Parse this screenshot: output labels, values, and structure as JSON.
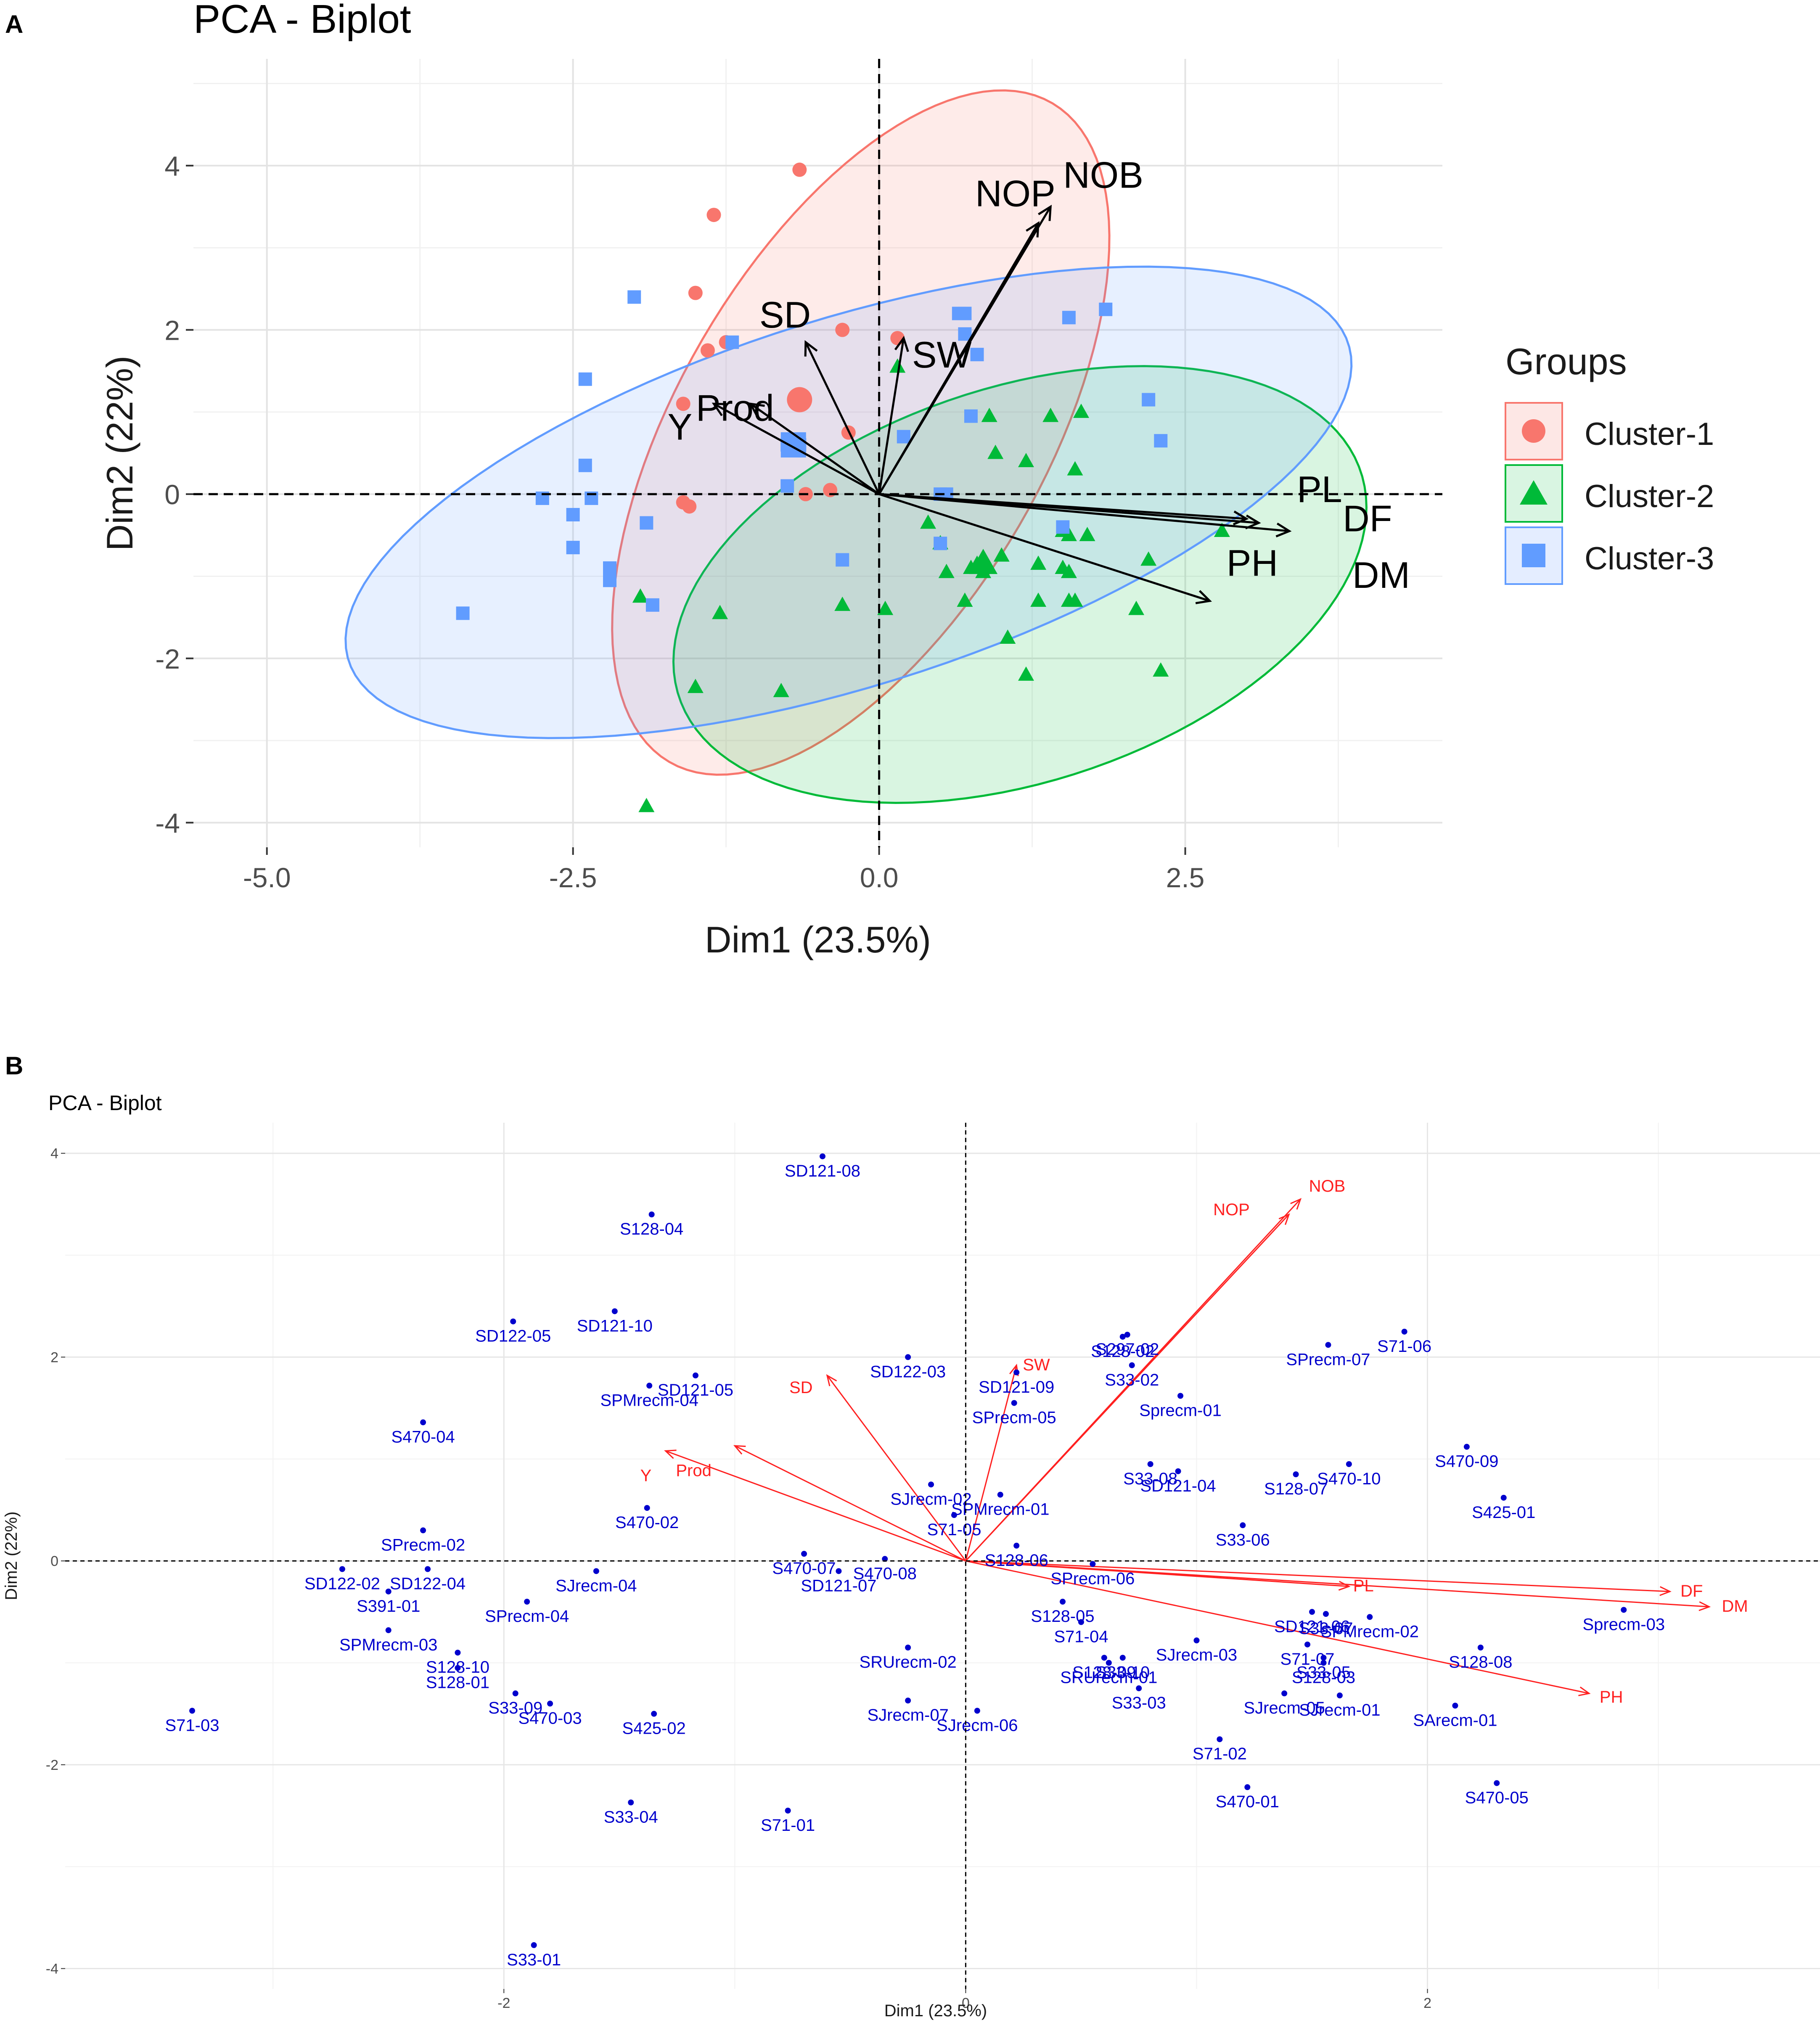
{
  "panel_labels": [
    "A",
    "B"
  ],
  "chart_data": [
    {
      "panel": "A",
      "type": "scatter",
      "title": "PCA - Biplot",
      "xlabel": "Dim1 (23.5%)",
      "ylabel": "Dim2 (22%)",
      "xlim": [
        -5.6,
        4.6
      ],
      "ylim": [
        -4.3,
        5.3
      ],
      "xticks": [
        -5.0,
        -2.5,
        0.0,
        2.5
      ],
      "xtick_labels": [
        "-5.0",
        "-2.5",
        "0.0",
        "2.5"
      ],
      "yticks": [
        -4,
        -2,
        0,
        2,
        4
      ],
      "ytick_labels": [
        "-4",
        "-2",
        "0",
        "2",
        "4"
      ],
      "grid": true,
      "legend": {
        "title": "Groups",
        "position": "right",
        "entries": [
          {
            "label": "Cluster-1",
            "color": "#F8766D",
            "shape": "circle"
          },
          {
            "label": "Cluster-2",
            "color": "#00BA38",
            "shape": "triangle"
          },
          {
            "label": "Cluster-3",
            "color": "#619CFF",
            "shape": "square"
          }
        ]
      },
      "series": [
        {
          "name": "Cluster-1",
          "color": "#F8766D",
          "shape": "circle",
          "points": [
            [
              -0.65,
              3.95
            ],
            [
              -1.35,
              3.4
            ],
            [
              -1.5,
              2.45
            ],
            [
              -1.25,
              1.85
            ],
            [
              -1.4,
              1.75
            ],
            [
              -0.3,
              2.0
            ],
            [
              0.15,
              1.9
            ],
            [
              -1.6,
              1.1
            ],
            [
              -0.65,
              1.15
            ],
            [
              -0.25,
              0.75
            ],
            [
              -0.6,
              0.0
            ],
            [
              -0.4,
              0.05
            ],
            [
              -1.55,
              -0.15
            ],
            [
              -1.6,
              -0.1
            ]
          ]
        },
        {
          "name": "Cluster-2",
          "color": "#00BA38",
          "shape": "triangle",
          "points": [
            [
              0.15,
              1.55
            ],
            [
              0.9,
              0.95
            ],
            [
              1.4,
              0.95
            ],
            [
              1.65,
              1.0
            ],
            [
              1.2,
              0.4
            ],
            [
              1.6,
              0.3
            ],
            [
              0.95,
              0.5
            ],
            [
              0.4,
              -0.35
            ],
            [
              0.5,
              -0.6
            ],
            [
              0.55,
              -0.95
            ],
            [
              0.75,
              -0.9
            ],
            [
              0.8,
              -0.85
            ],
            [
              0.85,
              -0.95
            ],
            [
              0.9,
              -0.9
            ],
            [
              1.0,
              -0.75
            ],
            [
              1.3,
              -0.85
            ],
            [
              1.5,
              -0.45
            ],
            [
              1.55,
              -0.5
            ],
            [
              1.7,
              -0.5
            ],
            [
              1.5,
              -0.9
            ],
            [
              1.55,
              -0.95
            ],
            [
              1.55,
              -1.3
            ],
            [
              2.2,
              -0.8
            ],
            [
              2.8,
              -0.45
            ],
            [
              0.7,
              -1.3
            ],
            [
              1.3,
              -1.3
            ],
            [
              1.6,
              -1.3
            ],
            [
              2.1,
              -1.4
            ],
            [
              1.05,
              -1.75
            ],
            [
              1.2,
              -2.2
            ],
            [
              2.3,
              -2.15
            ],
            [
              -0.3,
              -1.35
            ],
            [
              0.05,
              -1.4
            ],
            [
              -1.95,
              -1.25
            ],
            [
              -1.3,
              -1.45
            ],
            [
              -0.8,
              -2.4
            ],
            [
              -1.5,
              -2.35
            ],
            [
              -1.9,
              -3.8
            ]
          ]
        },
        {
          "name": "Cluster-3",
          "color": "#619CFF",
          "shape": "square",
          "points": [
            [
              -2.0,
              2.4
            ],
            [
              -1.2,
              1.85
            ],
            [
              -2.4,
              1.4
            ],
            [
              -2.4,
              0.35
            ],
            [
              -2.35,
              -0.05
            ],
            [
              -2.75,
              -0.05
            ],
            [
              -2.5,
              -0.25
            ],
            [
              -2.5,
              -0.65
            ],
            [
              -2.2,
              -0.9
            ],
            [
              -2.2,
              -1.05
            ],
            [
              -1.9,
              -0.35
            ],
            [
              -1.85,
              -1.35
            ],
            [
              -3.4,
              -1.45
            ],
            [
              -0.7,
              0.55
            ],
            [
              -0.75,
              0.6
            ],
            [
              -0.65,
              0.6
            ],
            [
              -0.75,
              0.1
            ],
            [
              -0.3,
              -0.8
            ],
            [
              0.2,
              0.7
            ],
            [
              0.5,
              -0.6
            ],
            [
              0.55,
              0.0
            ],
            [
              0.65,
              2.2
            ],
            [
              0.7,
              2.2
            ],
            [
              0.7,
              1.95
            ],
            [
              0.8,
              1.7
            ],
            [
              0.75,
              0.95
            ],
            [
              1.55,
              2.15
            ],
            [
              1.85,
              2.25
            ],
            [
              2.2,
              1.15
            ],
            [
              2.3,
              0.65
            ],
            [
              1.5,
              -0.4
            ],
            [
              0.5,
              0.0
            ]
          ]
        }
      ],
      "variables": [
        {
          "name": "NOB",
          "x": 1.4,
          "y": 3.5
        },
        {
          "name": "NOP",
          "x": 1.3,
          "y": 3.3
        },
        {
          "name": "SD",
          "x": -0.6,
          "y": 1.85
        },
        {
          "name": "SW",
          "x": 0.2,
          "y": 1.9
        },
        {
          "name": "Prod",
          "x": -1.05,
          "y": 1.1
        },
        {
          "name": "Y",
          "x": -1.35,
          "y": 1.1
        },
        {
          "name": "PL",
          "x": 3.0,
          "y": -0.3
        },
        {
          "name": "DF",
          "x": 3.1,
          "y": -0.35
        },
        {
          "name": "DM",
          "x": 3.35,
          "y": -0.45
        },
        {
          "name": "PH",
          "x": 2.7,
          "y": -1.3
        }
      ],
      "ellipses": [
        {
          "group": "Cluster-1",
          "cx": -0.15,
          "cy": 0.75,
          "rx": 4.35,
          "ry": 1.6,
          "angle_deg": 72,
          "color": "#F8766D"
        },
        {
          "group": "Cluster-2",
          "cx": 1.15,
          "cy": -1.1,
          "rx": 3.2,
          "ry": 2.2,
          "angle_deg": 40,
          "color": "#00BA38"
        },
        {
          "group": "Cluster-3",
          "cx": -0.25,
          "cy": -0.1,
          "rx": 4.55,
          "ry": 2.1,
          "angle_deg": 29,
          "color": "#619CFF"
        }
      ]
    },
    {
      "panel": "B",
      "type": "scatter",
      "title": "PCA - Biplot",
      "xlabel": "Dim1 (23.5%)",
      "ylabel": "Dim2 (22%)",
      "xlim": [
        -3.9,
        3.7
      ],
      "ylim": [
        -4.2,
        4.3
      ],
      "xticks": [
        -2,
        0,
        2
      ],
      "xtick_labels": [
        "-2",
        "0",
        "2"
      ],
      "yticks": [
        -4,
        -2,
        0,
        2,
        4
      ],
      "ytick_labels": [
        "-4",
        "-2",
        "0",
        "2",
        "4"
      ],
      "grid": true,
      "point_color": "#0000CD",
      "variable_color": "#FF2020",
      "points": [
        {
          "label": "SD121-08",
          "x": -0.62,
          "y": 3.97
        },
        {
          "label": "S128-04",
          "x": -1.36,
          "y": 3.4
        },
        {
          "label": "SD121-10",
          "x": -1.52,
          "y": 2.45
        },
        {
          "label": "SD122-05",
          "x": -1.96,
          "y": 2.35
        },
        {
          "label": "SD122-03",
          "x": -0.25,
          "y": 2.0
        },
        {
          "label": "SD121-05",
          "x": -1.17,
          "y": 1.82
        },
        {
          "label": "SPMrecm-04",
          "x": -1.37,
          "y": 1.72
        },
        {
          "label": "S470-04",
          "x": -2.35,
          "y": 1.36
        },
        {
          "label": "SD121-09",
          "x": 0.22,
          "y": 1.85
        },
        {
          "label": "SPrecm-05",
          "x": 0.21,
          "y": 1.55
        },
        {
          "label": "S128-02",
          "x": 0.68,
          "y": 2.2
        },
        {
          "label": "S297-02",
          "x": 0.7,
          "y": 2.22
        },
        {
          "label": "S33-02",
          "x": 0.72,
          "y": 1.92
        },
        {
          "label": "Sprecm-01",
          "x": 0.93,
          "y": 1.62
        },
        {
          "label": "SPrecm-07",
          "x": 1.57,
          "y": 2.12
        },
        {
          "label": "S71-06",
          "x": 1.9,
          "y": 2.25
        },
        {
          "label": "S33-08",
          "x": 0.8,
          "y": 0.95
        },
        {
          "label": "SD121-04",
          "x": 0.92,
          "y": 0.88
        },
        {
          "label": "S470-10",
          "x": 1.66,
          "y": 0.95
        },
        {
          "label": "S470-09",
          "x": 2.17,
          "y": 1.12
        },
        {
          "label": "S128-07",
          "x": 1.43,
          "y": 0.85
        },
        {
          "label": "S425-01",
          "x": 2.33,
          "y": 0.62
        },
        {
          "label": "S33-06",
          "x": 1.2,
          "y": 0.35
        },
        {
          "label": "SPMrecm-01",
          "x": 0.15,
          "y": 0.65
        },
        {
          "label": "SJrecm-02",
          "x": -0.15,
          "y": 0.75
        },
        {
          "label": "S71-05",
          "x": -0.05,
          "y": 0.45
        },
        {
          "label": "S470-02",
          "x": -1.38,
          "y": 0.52
        },
        {
          "label": "Y",
          "x": -1.3,
          "y": 1.1,
          "is_variable": true
        },
        {
          "label": "SPrecm-02",
          "x": -2.35,
          "y": 0.3
        },
        {
          "label": "SD122-02",
          "x": -2.7,
          "y": -0.08
        },
        {
          "label": "SD122-04",
          "x": -2.33,
          "y": -0.08
        },
        {
          "label": "SJrecm-04",
          "x": -1.6,
          "y": -0.1
        },
        {
          "label": "S470-07",
          "x": -0.7,
          "y": 0.07
        },
        {
          "label": "S470-08",
          "x": -0.35,
          "y": 0.02
        },
        {
          "label": "SD121-07",
          "x": -0.55,
          "y": -0.1
        },
        {
          "label": "S128-06",
          "x": 0.22,
          "y": 0.15
        },
        {
          "label": "SPrecm-06",
          "x": 0.55,
          "y": -0.03
        },
        {
          "label": "S128-05",
          "x": 0.42,
          "y": -0.4
        },
        {
          "label": "S71-04",
          "x": 0.5,
          "y": -0.6
        },
        {
          "label": "S391-01",
          "x": -2.5,
          "y": -0.3
        },
        {
          "label": "SPrecm-04",
          "x": -1.9,
          "y": -0.4
        },
        {
          "label": "SPMrecm-03",
          "x": -2.5,
          "y": -0.68
        },
        {
          "label": "S128-10",
          "x": -2.2,
          "y": -0.9
        },
        {
          "label": "S128-01",
          "x": -2.2,
          "y": -1.05
        },
        {
          "label": "S33-09",
          "x": -1.95,
          "y": -1.3
        },
        {
          "label": "S470-03",
          "x": -1.8,
          "y": -1.4
        },
        {
          "label": "S425-02",
          "x": -1.35,
          "y": -1.5
        },
        {
          "label": "S71-03",
          "x": -3.35,
          "y": -1.47
        },
        {
          "label": "SRUrecm-02",
          "x": -0.25,
          "y": -0.85
        },
        {
          "label": "SJrecm-07",
          "x": -0.25,
          "y": -1.37
        },
        {
          "label": "SJrecm-06",
          "x": 0.05,
          "y": -1.47
        },
        {
          "label": "S128-09",
          "x": 0.6,
          "y": -0.95
        },
        {
          "label": "SRUrecm-01",
          "x": 0.62,
          "y": -1.0
        },
        {
          "label": "S33-10",
          "x": 0.68,
          "y": -0.95
        },
        {
          "label": "SJrecm-03",
          "x": 1.0,
          "y": -0.78
        },
        {
          "label": "S33-03",
          "x": 0.75,
          "y": -1.25
        },
        {
          "label": "SJrecm-05",
          "x": 1.38,
          "y": -1.3
        },
        {
          "label": "S71-02",
          "x": 1.1,
          "y": -1.75
        },
        {
          "label": "S470-01",
          "x": 1.22,
          "y": -2.22
        },
        {
          "label": "SD121-06",
          "x": 1.5,
          "y": -0.5
        },
        {
          "label": "S33-07",
          "x": 1.56,
          "y": -0.52
        },
        {
          "label": "SPMrecm-02",
          "x": 1.75,
          "y": -0.55
        },
        {
          "label": "S71-07",
          "x": 1.48,
          "y": -0.82
        },
        {
          "label": "S33-05",
          "x": 1.55,
          "y": -0.95
        },
        {
          "label": "S128-03",
          "x": 1.55,
          "y": -1.0
        },
        {
          "label": "SJrecm-01",
          "x": 1.62,
          "y": -1.32
        },
        {
          "label": "S128-08",
          "x": 2.23,
          "y": -0.85
        },
        {
          "label": "Sprecm-03",
          "x": 2.85,
          "y": -0.48
        },
        {
          "label": "SArecm-01",
          "x": 2.12,
          "y": -1.42
        },
        {
          "label": "S470-05",
          "x": 2.3,
          "y": -2.18
        },
        {
          "label": "S71-01",
          "x": -0.77,
          "y": -2.45
        },
        {
          "label": "S33-04",
          "x": -1.45,
          "y": -2.37
        },
        {
          "label": "S33-01",
          "x": -1.87,
          "y": -3.77
        }
      ],
      "variables": [
        {
          "name": "NOB",
          "x": 1.45,
          "y": 3.55
        },
        {
          "name": "NOP",
          "x": 1.4,
          "y": 3.4
        },
        {
          "name": "SW",
          "x": 0.22,
          "y": 1.92
        },
        {
          "name": "SD",
          "x": -0.6,
          "y": 1.82
        },
        {
          "name": "Prod",
          "x": -1.0,
          "y": 1.13
        },
        {
          "name": "Y",
          "x": -1.3,
          "y": 1.08
        },
        {
          "name": "PL",
          "x": 1.66,
          "y": -0.25
        },
        {
          "name": "DF",
          "x": 3.05,
          "y": -0.3
        },
        {
          "name": "DM",
          "x": 3.22,
          "y": -0.45
        },
        {
          "name": "PH",
          "x": 2.7,
          "y": -1.3
        }
      ]
    }
  ]
}
